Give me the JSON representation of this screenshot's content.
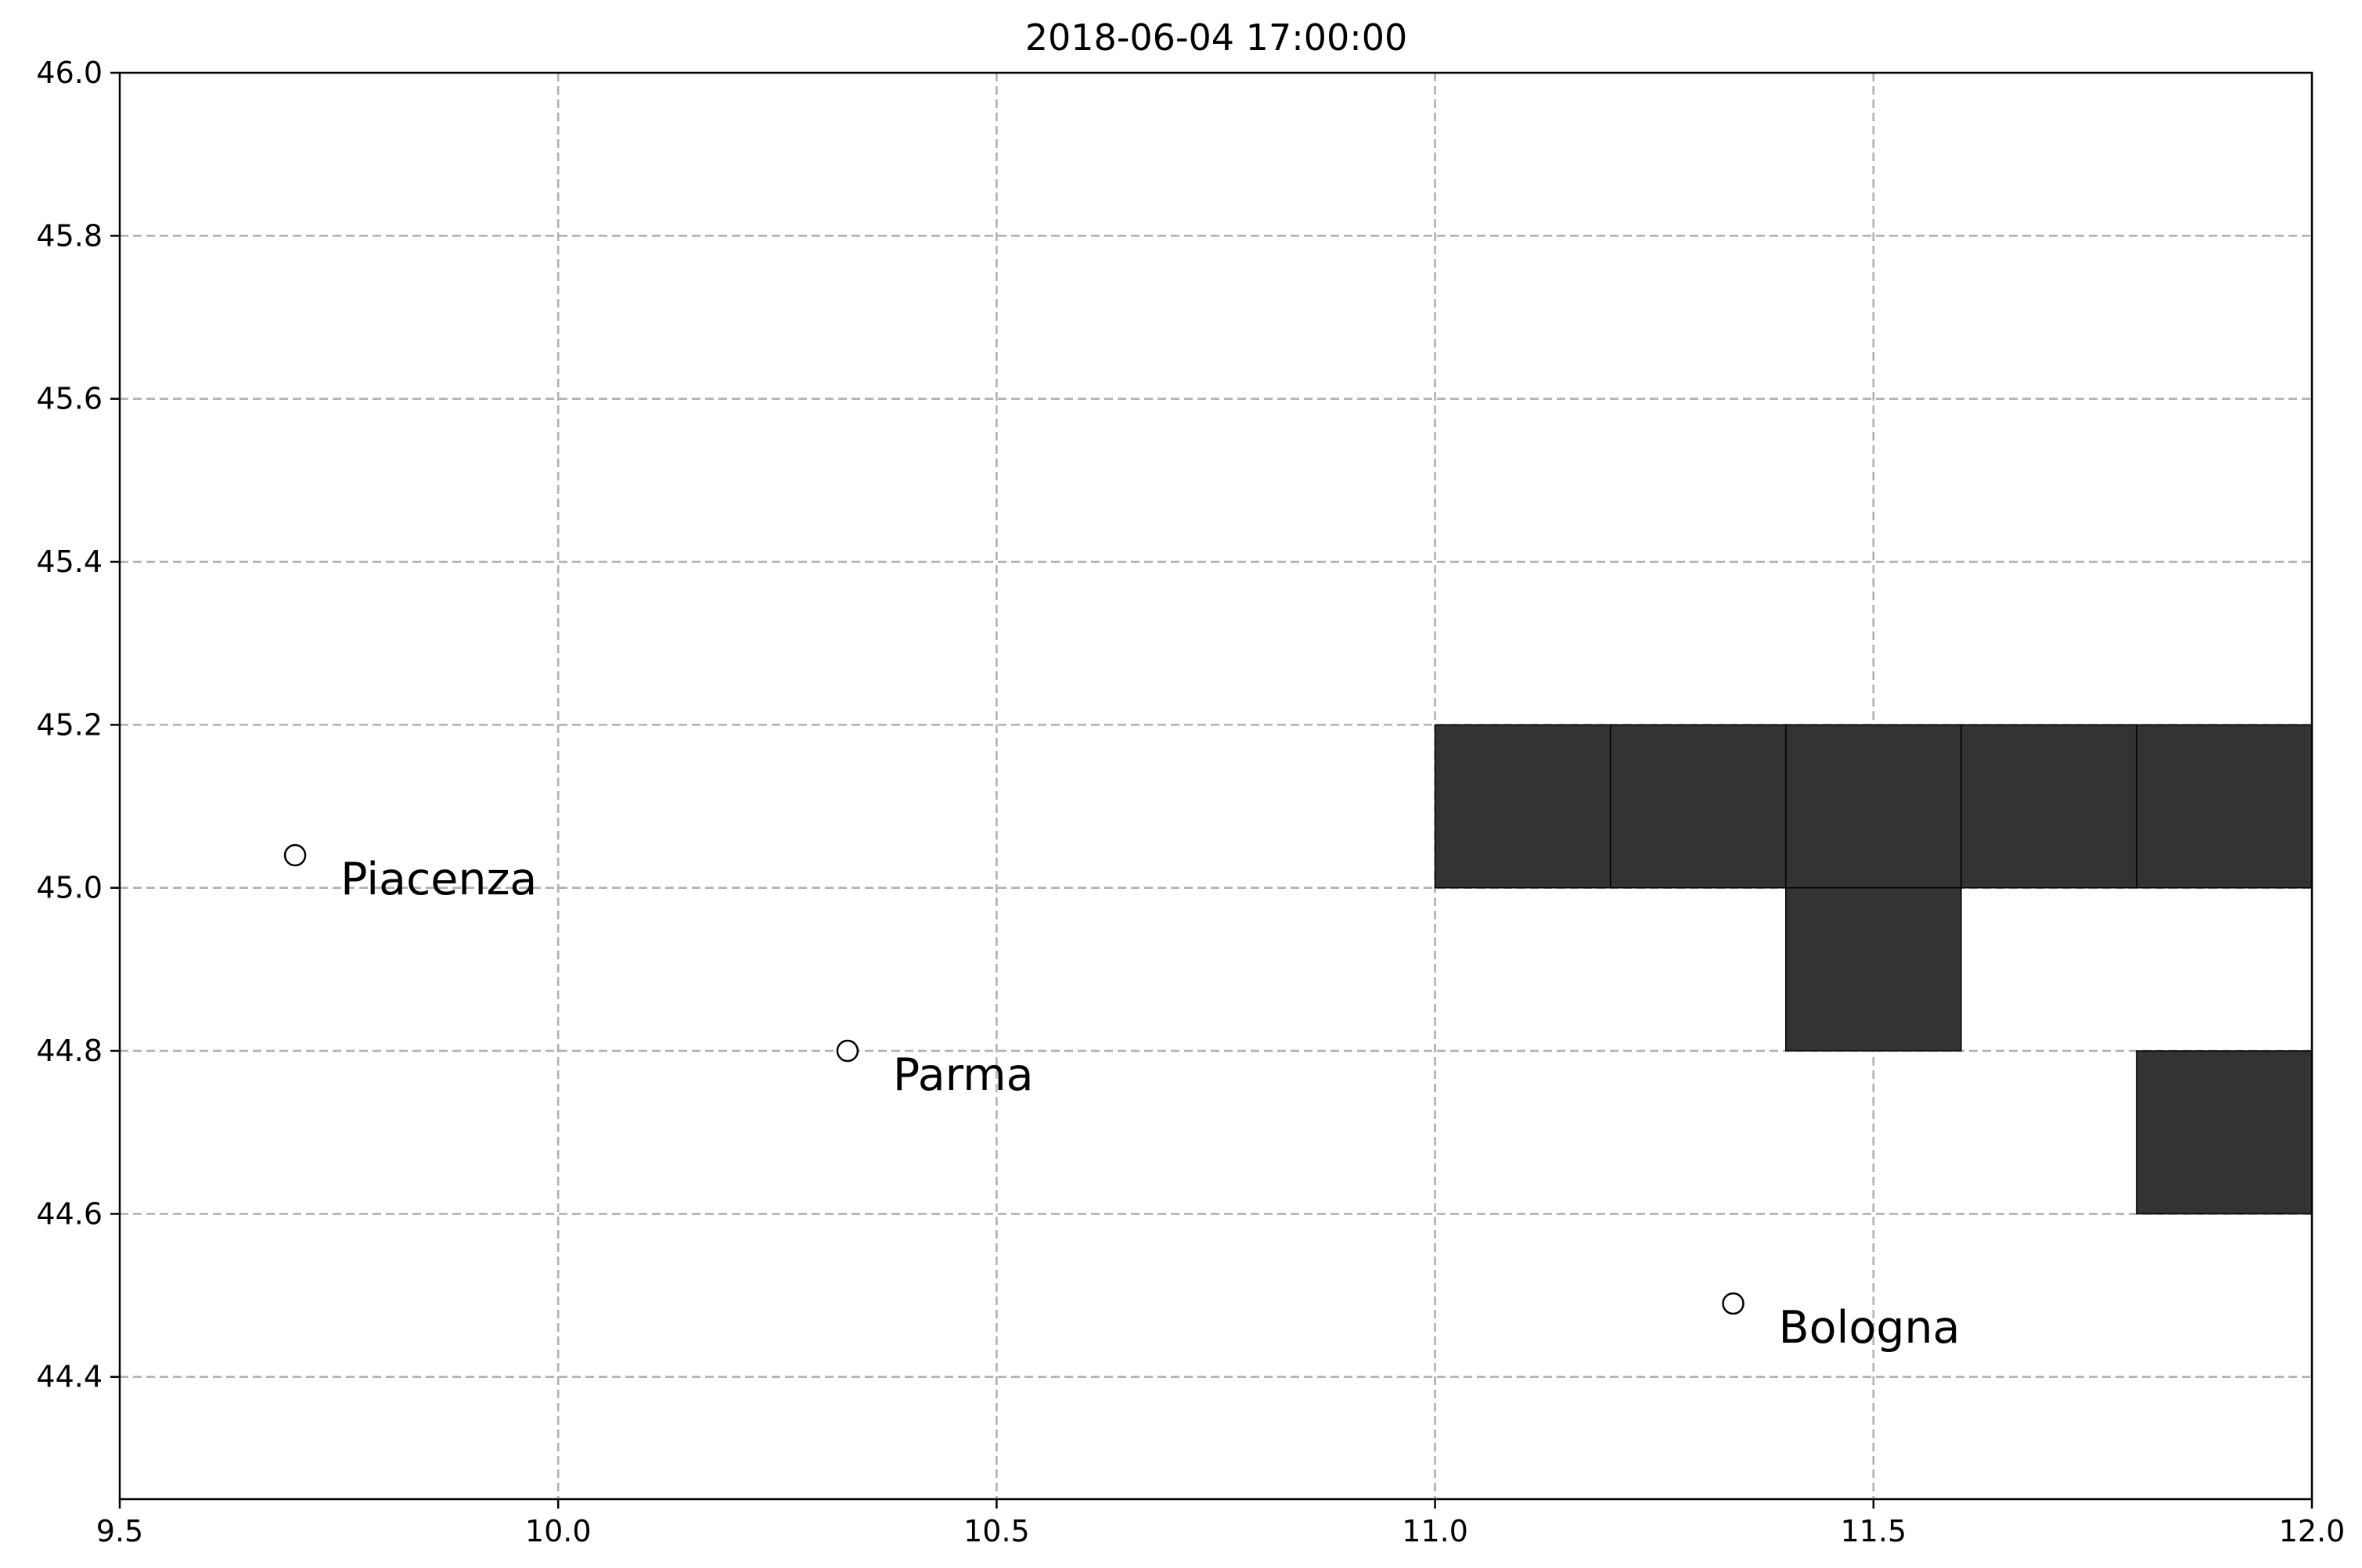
{
  "chart_data": {
    "type": "heatmap",
    "title": "2018-06-04 17:00:00",
    "xlabel": "",
    "ylabel": "",
    "xlim": [
      9.5,
      12.0
    ],
    "ylim": [
      44.25,
      46.0
    ],
    "xticks": [
      "9.5",
      "10.0",
      "10.5",
      "11.0",
      "11.5",
      "12.0"
    ],
    "yticks": [
      "44.4",
      "44.6",
      "44.8",
      "45.0",
      "45.2",
      "45.4",
      "45.6",
      "45.8",
      "46.0"
    ],
    "grid": true,
    "cell_size": 0.2,
    "cell_color": "#333333",
    "cells": [
      {
        "lon": 11.0,
        "lat": 45.0
      },
      {
        "lon": 11.2,
        "lat": 45.0
      },
      {
        "lon": 11.4,
        "lat": 45.0
      },
      {
        "lon": 11.6,
        "lat": 45.0
      },
      {
        "lon": 11.8,
        "lat": 45.0
      },
      {
        "lon": 11.4,
        "lat": 44.8
      },
      {
        "lon": 11.8,
        "lat": 44.6
      }
    ],
    "cities": [
      {
        "name": "Piacenza",
        "lon": 9.7,
        "lat": 45.04
      },
      {
        "name": "Parma",
        "lon": 10.33,
        "lat": 44.8
      },
      {
        "name": "Bologna",
        "lon": 11.34,
        "lat": 44.49
      }
    ]
  }
}
